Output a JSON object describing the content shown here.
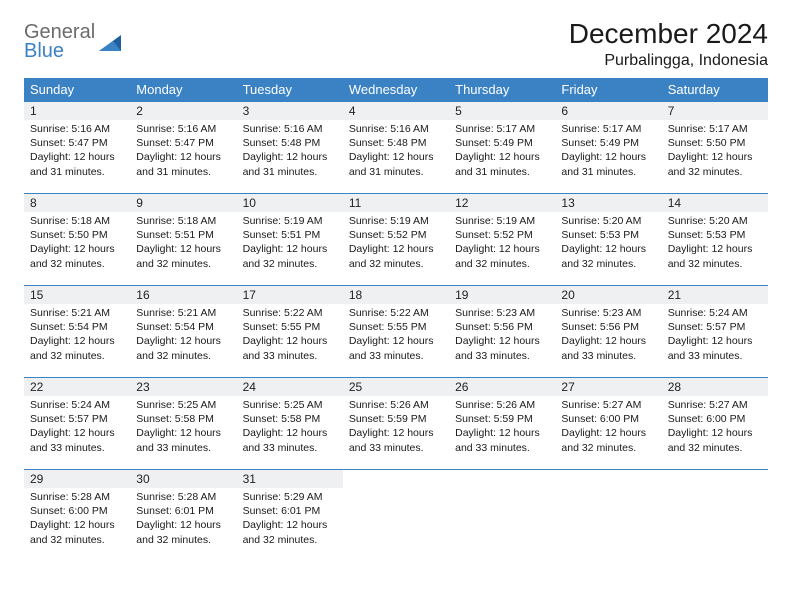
{
  "logo": {
    "word1": "General",
    "word2": "Blue"
  },
  "title": "December 2024",
  "location": "Purbalingga, Indonesia",
  "colors": {
    "header_bg": "#3b82c4",
    "header_text": "#ffffff",
    "daynum_bg": "#eef0f2",
    "border": "#3b82c4",
    "text": "#1a1a1a",
    "logo_gray": "#6b6b6b",
    "logo_blue": "#3b82c4",
    "background": "#ffffff"
  },
  "day_headers": [
    "Sunday",
    "Monday",
    "Tuesday",
    "Wednesday",
    "Thursday",
    "Friday",
    "Saturday"
  ],
  "weeks": [
    [
      {
        "n": "1",
        "sr": "Sunrise: 5:16 AM",
        "ss": "Sunset: 5:47 PM",
        "d1": "Daylight: 12 hours",
        "d2": "and 31 minutes."
      },
      {
        "n": "2",
        "sr": "Sunrise: 5:16 AM",
        "ss": "Sunset: 5:47 PM",
        "d1": "Daylight: 12 hours",
        "d2": "and 31 minutes."
      },
      {
        "n": "3",
        "sr": "Sunrise: 5:16 AM",
        "ss": "Sunset: 5:48 PM",
        "d1": "Daylight: 12 hours",
        "d2": "and 31 minutes."
      },
      {
        "n": "4",
        "sr": "Sunrise: 5:16 AM",
        "ss": "Sunset: 5:48 PM",
        "d1": "Daylight: 12 hours",
        "d2": "and 31 minutes."
      },
      {
        "n": "5",
        "sr": "Sunrise: 5:17 AM",
        "ss": "Sunset: 5:49 PM",
        "d1": "Daylight: 12 hours",
        "d2": "and 31 minutes."
      },
      {
        "n": "6",
        "sr": "Sunrise: 5:17 AM",
        "ss": "Sunset: 5:49 PM",
        "d1": "Daylight: 12 hours",
        "d2": "and 31 minutes."
      },
      {
        "n": "7",
        "sr": "Sunrise: 5:17 AM",
        "ss": "Sunset: 5:50 PM",
        "d1": "Daylight: 12 hours",
        "d2": "and 32 minutes."
      }
    ],
    [
      {
        "n": "8",
        "sr": "Sunrise: 5:18 AM",
        "ss": "Sunset: 5:50 PM",
        "d1": "Daylight: 12 hours",
        "d2": "and 32 minutes."
      },
      {
        "n": "9",
        "sr": "Sunrise: 5:18 AM",
        "ss": "Sunset: 5:51 PM",
        "d1": "Daylight: 12 hours",
        "d2": "and 32 minutes."
      },
      {
        "n": "10",
        "sr": "Sunrise: 5:19 AM",
        "ss": "Sunset: 5:51 PM",
        "d1": "Daylight: 12 hours",
        "d2": "and 32 minutes."
      },
      {
        "n": "11",
        "sr": "Sunrise: 5:19 AM",
        "ss": "Sunset: 5:52 PM",
        "d1": "Daylight: 12 hours",
        "d2": "and 32 minutes."
      },
      {
        "n": "12",
        "sr": "Sunrise: 5:19 AM",
        "ss": "Sunset: 5:52 PM",
        "d1": "Daylight: 12 hours",
        "d2": "and 32 minutes."
      },
      {
        "n": "13",
        "sr": "Sunrise: 5:20 AM",
        "ss": "Sunset: 5:53 PM",
        "d1": "Daylight: 12 hours",
        "d2": "and 32 minutes."
      },
      {
        "n": "14",
        "sr": "Sunrise: 5:20 AM",
        "ss": "Sunset: 5:53 PM",
        "d1": "Daylight: 12 hours",
        "d2": "and 32 minutes."
      }
    ],
    [
      {
        "n": "15",
        "sr": "Sunrise: 5:21 AM",
        "ss": "Sunset: 5:54 PM",
        "d1": "Daylight: 12 hours",
        "d2": "and 32 minutes."
      },
      {
        "n": "16",
        "sr": "Sunrise: 5:21 AM",
        "ss": "Sunset: 5:54 PM",
        "d1": "Daylight: 12 hours",
        "d2": "and 32 minutes."
      },
      {
        "n": "17",
        "sr": "Sunrise: 5:22 AM",
        "ss": "Sunset: 5:55 PM",
        "d1": "Daylight: 12 hours",
        "d2": "and 33 minutes."
      },
      {
        "n": "18",
        "sr": "Sunrise: 5:22 AM",
        "ss": "Sunset: 5:55 PM",
        "d1": "Daylight: 12 hours",
        "d2": "and 33 minutes."
      },
      {
        "n": "19",
        "sr": "Sunrise: 5:23 AM",
        "ss": "Sunset: 5:56 PM",
        "d1": "Daylight: 12 hours",
        "d2": "and 33 minutes."
      },
      {
        "n": "20",
        "sr": "Sunrise: 5:23 AM",
        "ss": "Sunset: 5:56 PM",
        "d1": "Daylight: 12 hours",
        "d2": "and 33 minutes."
      },
      {
        "n": "21",
        "sr": "Sunrise: 5:24 AM",
        "ss": "Sunset: 5:57 PM",
        "d1": "Daylight: 12 hours",
        "d2": "and 33 minutes."
      }
    ],
    [
      {
        "n": "22",
        "sr": "Sunrise: 5:24 AM",
        "ss": "Sunset: 5:57 PM",
        "d1": "Daylight: 12 hours",
        "d2": "and 33 minutes."
      },
      {
        "n": "23",
        "sr": "Sunrise: 5:25 AM",
        "ss": "Sunset: 5:58 PM",
        "d1": "Daylight: 12 hours",
        "d2": "and 33 minutes."
      },
      {
        "n": "24",
        "sr": "Sunrise: 5:25 AM",
        "ss": "Sunset: 5:58 PM",
        "d1": "Daylight: 12 hours",
        "d2": "and 33 minutes."
      },
      {
        "n": "25",
        "sr": "Sunrise: 5:26 AM",
        "ss": "Sunset: 5:59 PM",
        "d1": "Daylight: 12 hours",
        "d2": "and 33 minutes."
      },
      {
        "n": "26",
        "sr": "Sunrise: 5:26 AM",
        "ss": "Sunset: 5:59 PM",
        "d1": "Daylight: 12 hours",
        "d2": "and 33 minutes."
      },
      {
        "n": "27",
        "sr": "Sunrise: 5:27 AM",
        "ss": "Sunset: 6:00 PM",
        "d1": "Daylight: 12 hours",
        "d2": "and 32 minutes."
      },
      {
        "n": "28",
        "sr": "Sunrise: 5:27 AM",
        "ss": "Sunset: 6:00 PM",
        "d1": "Daylight: 12 hours",
        "d2": "and 32 minutes."
      }
    ],
    [
      {
        "n": "29",
        "sr": "Sunrise: 5:28 AM",
        "ss": "Sunset: 6:00 PM",
        "d1": "Daylight: 12 hours",
        "d2": "and 32 minutes."
      },
      {
        "n": "30",
        "sr": "Sunrise: 5:28 AM",
        "ss": "Sunset: 6:01 PM",
        "d1": "Daylight: 12 hours",
        "d2": "and 32 minutes."
      },
      {
        "n": "31",
        "sr": "Sunrise: 5:29 AM",
        "ss": "Sunset: 6:01 PM",
        "d1": "Daylight: 12 hours",
        "d2": "and 32 minutes."
      },
      {
        "empty": true
      },
      {
        "empty": true
      },
      {
        "empty": true
      },
      {
        "empty": true
      }
    ]
  ]
}
